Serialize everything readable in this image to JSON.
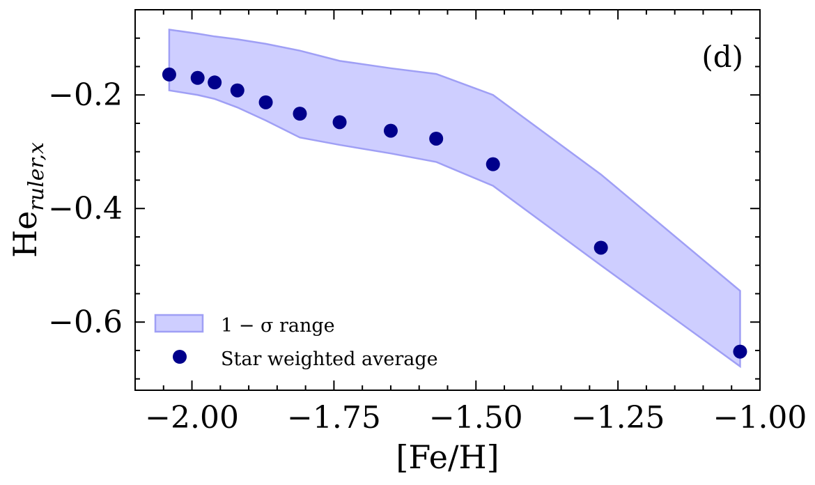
{
  "chart_data": {
    "type": "scatter",
    "title": "",
    "panel_label": "(d)",
    "xlabel": "[Fe/H]",
    "ylabel": {
      "base": "He",
      "subscript": "ruler,x"
    },
    "xlim": [
      -2.1,
      -1.0
    ],
    "ylim": [
      -0.72,
      -0.05
    ],
    "x_ticks": [
      -2.0,
      -1.75,
      -1.5,
      -1.25,
      -1.0
    ],
    "x_tick_labels": [
      "−2.00",
      "−1.75",
      "−1.50",
      "−1.25",
      "−1.00"
    ],
    "y_ticks": [
      -0.2,
      -0.4,
      -0.6
    ],
    "y_tick_labels": [
      "−0.2",
      "−0.4",
      "−0.6"
    ],
    "x_minor_step": 0.05,
    "y_minor_step": 0.05,
    "series": [
      {
        "name": "1 − σ range",
        "kind": "band",
        "color": "#b3b3ff",
        "edge_color": "#9f9ff5",
        "x": [
          -2.04,
          -1.99,
          -1.96,
          -1.92,
          -1.87,
          -1.81,
          -1.74,
          -1.65,
          -1.57,
          -1.47,
          -1.28,
          -1.035
        ],
        "upper": [
          -0.085,
          -0.092,
          -0.097,
          -0.102,
          -0.11,
          -0.122,
          -0.14,
          -0.153,
          -0.163,
          -0.2,
          -0.34,
          -0.545
        ],
        "lower": [
          -0.192,
          -0.2,
          -0.207,
          -0.222,
          -0.245,
          -0.275,
          -0.288,
          -0.303,
          -0.318,
          -0.36,
          -0.5,
          -0.678
        ]
      },
      {
        "name": "Star weighted average",
        "kind": "points",
        "color": "#00008b",
        "x": [
          -2.04,
          -1.99,
          -1.96,
          -1.92,
          -1.87,
          -1.81,
          -1.74,
          -1.65,
          -1.57,
          -1.47,
          -1.28,
          -1.035
        ],
        "y": [
          -0.164,
          -0.17,
          -0.178,
          -0.192,
          -0.213,
          -0.233,
          -0.248,
          -0.263,
          -0.277,
          -0.322,
          -0.469,
          -0.652
        ]
      }
    ],
    "legend_position": "lower-left"
  }
}
